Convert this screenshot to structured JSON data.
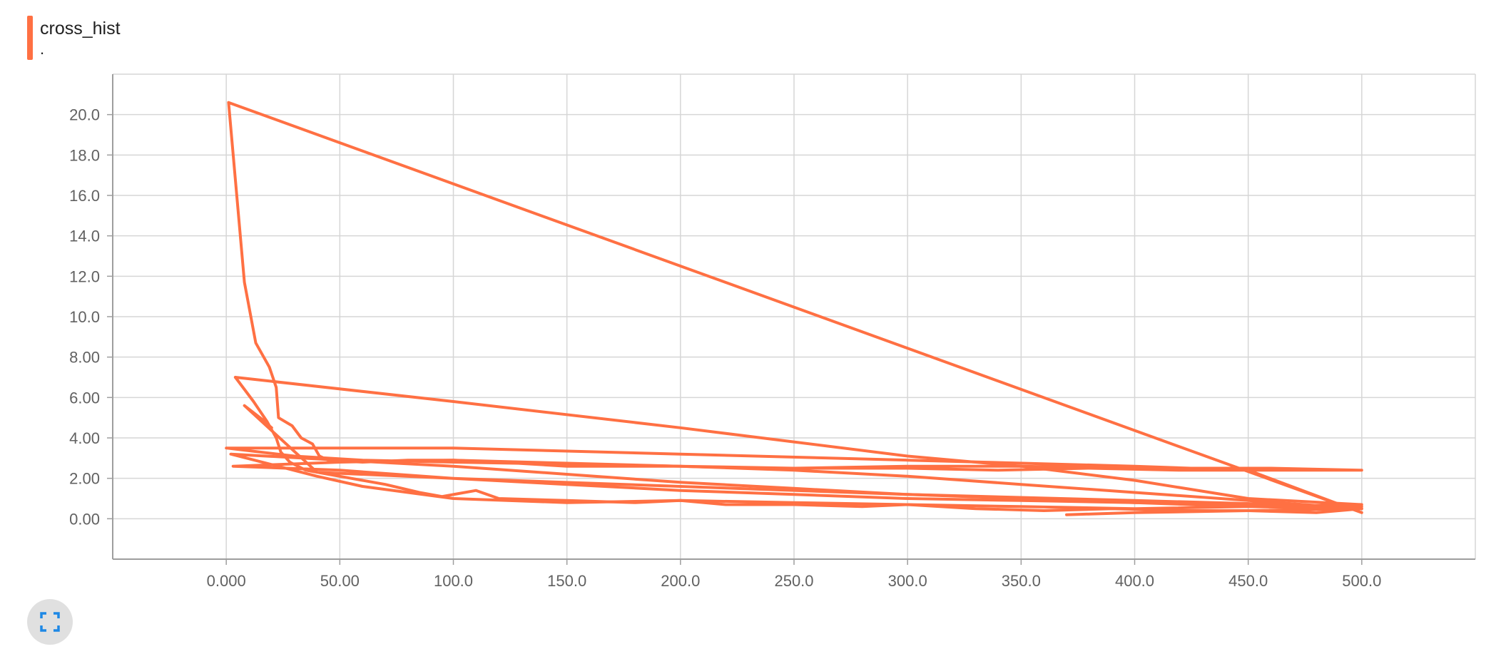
{
  "card": {
    "title": "cross_hist",
    "subtitle": ".",
    "accent_color": "#ff7043"
  },
  "expand_button": {
    "icon": "fullscreen-icon",
    "color": "#1e88e5"
  },
  "chart_data": {
    "type": "line",
    "title": "",
    "xlabel": "",
    "ylabel": "",
    "xlim": [
      -50,
      550
    ],
    "ylim": [
      -2,
      22
    ],
    "x_ticks": [
      "0.000",
      "50.00",
      "100.0",
      "150.0",
      "200.0",
      "250.0",
      "300.0",
      "350.0",
      "400.0",
      "450.0",
      "500.0"
    ],
    "x_tick_values": [
      0,
      50,
      100,
      150,
      200,
      250,
      300,
      350,
      400,
      450,
      500
    ],
    "y_ticks": [
      "0.00",
      "2.00",
      "4.00",
      "6.00",
      "8.00",
      "10.0",
      "12.0",
      "14.0",
      "16.0",
      "18.0",
      "20.0"
    ],
    "y_tick_values": [
      0,
      2,
      4,
      6,
      8,
      10,
      12,
      14,
      16,
      18,
      20
    ],
    "grid": true,
    "legend": "none",
    "series": [
      {
        "color": "#ff7043",
        "points": [
          [
            1,
            20.6
          ],
          [
            8,
            11.7
          ],
          [
            13,
            8.7
          ],
          [
            19,
            7.5
          ],
          [
            22,
            6.5
          ],
          [
            23,
            5.0
          ],
          [
            29,
            4.6
          ],
          [
            33,
            4.0
          ],
          [
            38,
            3.7
          ],
          [
            41,
            3.1
          ],
          [
            45,
            2.9
          ],
          [
            60,
            2.8
          ],
          [
            80,
            2.9
          ],
          [
            100,
            2.9
          ],
          [
            120,
            2.8
          ],
          [
            150,
            2.6
          ],
          [
            180,
            2.6
          ],
          [
            200,
            2.6
          ],
          [
            230,
            2.5
          ],
          [
            260,
            2.5
          ],
          [
            300,
            2.5
          ],
          [
            340,
            2.4
          ],
          [
            380,
            2.5
          ],
          [
            420,
            2.4
          ],
          [
            450,
            2.4
          ],
          [
            470,
            2.4
          ],
          [
            500,
            2.4
          ],
          [
            460,
            2.5
          ],
          [
            400,
            2.5
          ],
          [
            350,
            2.6
          ],
          [
            300,
            2.6
          ],
          [
            250,
            2.5
          ],
          [
            200,
            2.6
          ],
          [
            150,
            2.7
          ],
          [
            100,
            2.8
          ],
          [
            60,
            2.9
          ],
          [
            30,
            3.1
          ],
          [
            0,
            3.5
          ],
          [
            100,
            3.5
          ],
          [
            200,
            3.2
          ],
          [
            300,
            2.9
          ],
          [
            400,
            2.6
          ],
          [
            450,
            2.4
          ],
          [
            500,
            0.3
          ],
          [
            1,
            20.6
          ]
        ]
      },
      {
        "color": "#ff7043",
        "points": [
          [
            4,
            7.0
          ],
          [
            12,
            5.8
          ],
          [
            18,
            4.8
          ],
          [
            22,
            4.0
          ],
          [
            24,
            3.3
          ],
          [
            28,
            2.8
          ],
          [
            35,
            2.4
          ],
          [
            45,
            2.2
          ],
          [
            55,
            2.0
          ],
          [
            70,
            1.7
          ],
          [
            85,
            1.3
          ],
          [
            95,
            1.1
          ],
          [
            110,
            1.4
          ],
          [
            120,
            1.0
          ],
          [
            150,
            0.9
          ],
          [
            180,
            0.8
          ],
          [
            200,
            0.9
          ],
          [
            220,
            0.7
          ],
          [
            250,
            0.7
          ],
          [
            280,
            0.6
          ],
          [
            300,
            0.7
          ],
          [
            330,
            0.5
          ],
          [
            360,
            0.4
          ],
          [
            390,
            0.5
          ],
          [
            420,
            0.4
          ],
          [
            450,
            0.4
          ],
          [
            480,
            0.3
          ],
          [
            500,
            0.5
          ],
          [
            450,
            0.9
          ],
          [
            400,
            1.3
          ],
          [
            350,
            1.7
          ],
          [
            300,
            2.1
          ],
          [
            250,
            2.4
          ],
          [
            200,
            2.6
          ],
          [
            100,
            2.9
          ],
          [
            50,
            2.8
          ],
          [
            3,
            2.6
          ],
          [
            50,
            2.4
          ],
          [
            100,
            2.0
          ],
          [
            150,
            1.7
          ],
          [
            200,
            1.4
          ],
          [
            250,
            1.2
          ],
          [
            300,
            1.0
          ],
          [
            350,
            0.9
          ],
          [
            400,
            0.8
          ],
          [
            450,
            0.7
          ],
          [
            500,
            0.6
          ],
          [
            400,
            0.9
          ],
          [
            300,
            1.2
          ],
          [
            200,
            1.6
          ],
          [
            100,
            2.0
          ],
          [
            40,
            2.3
          ],
          [
            8,
            5.6
          ],
          [
            16,
            4.9
          ],
          [
            20,
            4.5
          ]
        ]
      },
      {
        "color": "#ff7043",
        "points": [
          [
            4,
            7.0
          ],
          [
            100,
            5.8
          ],
          [
            200,
            4.5
          ],
          [
            300,
            3.1
          ],
          [
            350,
            2.6
          ],
          [
            400,
            1.9
          ],
          [
            450,
            1.0
          ],
          [
            500,
            0.7
          ],
          [
            450,
            0.6
          ],
          [
            400,
            0.5
          ],
          [
            350,
            0.6
          ],
          [
            300,
            0.7
          ],
          [
            250,
            0.8
          ],
          [
            200,
            0.9
          ],
          [
            150,
            0.8
          ],
          [
            100,
            1.0
          ],
          [
            60,
            1.6
          ],
          [
            40,
            2.1
          ],
          [
            2,
            3.2
          ],
          [
            50,
            2.9
          ],
          [
            100,
            2.6
          ],
          [
            150,
            2.2
          ],
          [
            200,
            1.8
          ],
          [
            250,
            1.5
          ],
          [
            300,
            1.2
          ],
          [
            350,
            1.0
          ],
          [
            400,
            0.8
          ],
          [
            450,
            0.6
          ],
          [
            500,
            0.5
          ],
          [
            450,
            0.4
          ],
          [
            400,
            0.3
          ],
          [
            370,
            0.2
          ]
        ]
      }
    ]
  }
}
